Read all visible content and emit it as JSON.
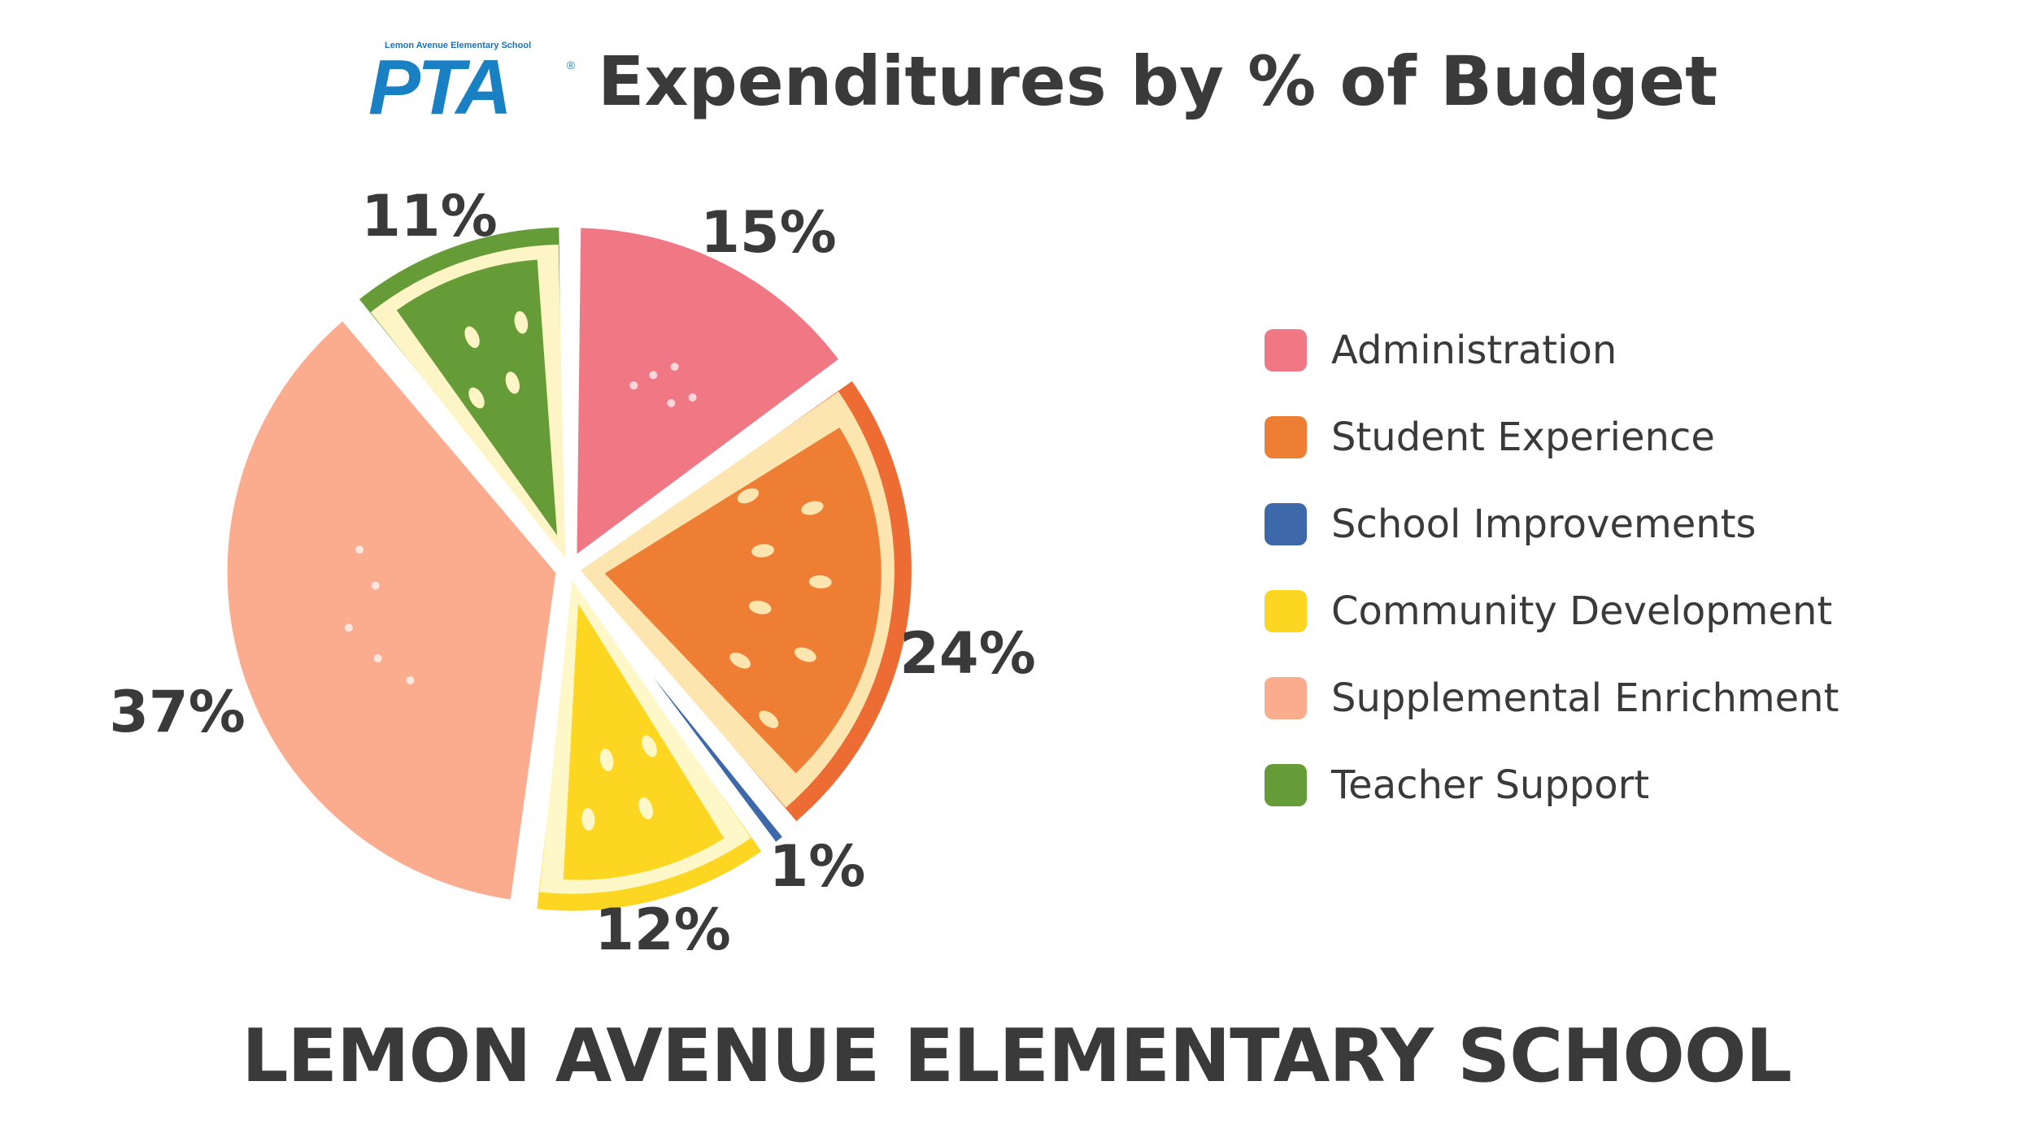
{
  "header": {
    "logo_school": "Lemon Avenue Elementary School",
    "logo_mark": "PTA",
    "logo_reg": "®",
    "title": "Expenditures by % of Budget"
  },
  "footer": {
    "school_name": "LEMON AVENUE ELEMENTARY SCHOOL"
  },
  "chart_data": {
    "type": "pie",
    "title": "Expenditures by % of Budget",
    "legend_position": "right",
    "slices": [
      {
        "name": "Administration",
        "value": 15,
        "label": "15%",
        "color": "#f07784",
        "inner": "#f07784",
        "rind": "#f07784"
      },
      {
        "name": "Student Experience",
        "value": 24,
        "label": "24%",
        "color": "#ee7e34",
        "inner": "#ee7e34",
        "rind": "#ec6c34",
        "pith": "#fde5b0"
      },
      {
        "name": "School Improvements",
        "value": 1,
        "label": "1%",
        "color": "#3d68aa",
        "inner": "#3d68aa",
        "rind": "#3d68aa"
      },
      {
        "name": "Community Development",
        "value": 12,
        "label": "12%",
        "color": "#fdd622",
        "inner": "#fdd622",
        "rind": "#fdd622",
        "pith": "#fef8c8"
      },
      {
        "name": "Supplemental Enrichment",
        "value": 37,
        "label": "37%",
        "color": "#fbab8e",
        "inner": "#fbab8e",
        "rind": "#fbab8e"
      },
      {
        "name": "Teacher Support",
        "value": 11,
        "label": "11%",
        "color": "#659c38",
        "inner": "#659c38",
        "rind": "#659c38",
        "pith": "#fdf5c6"
      }
    ]
  }
}
